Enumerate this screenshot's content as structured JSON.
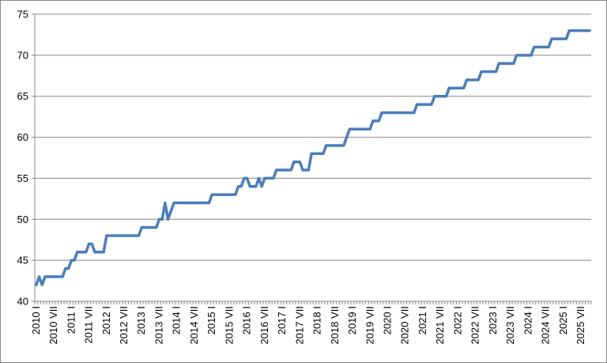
{
  "chart_data": {
    "type": "line",
    "categories": [
      "2010 I",
      null,
      null,
      null,
      null,
      null,
      "2010 VII",
      null,
      null,
      null,
      null,
      null,
      "2011 I",
      null,
      null,
      null,
      null,
      null,
      "2011 VII",
      null,
      null,
      null,
      null,
      null,
      "2012 I",
      null,
      null,
      null,
      null,
      null,
      "2012 VII",
      null,
      null,
      null,
      null,
      null,
      "2013 I",
      null,
      null,
      null,
      null,
      null,
      "2013 VII",
      null,
      null,
      null,
      null,
      null,
      "2014 I",
      null,
      null,
      null,
      null,
      null,
      "2014 VII",
      null,
      null,
      null,
      null,
      null,
      "2015 I",
      null,
      null,
      null,
      null,
      null,
      "2015 VII",
      null,
      null,
      null,
      null,
      null,
      "2016 I",
      null,
      null,
      null,
      null,
      null,
      "2016 VII",
      null,
      null,
      null,
      null,
      null,
      "2017 I",
      null,
      null,
      null,
      null,
      null,
      "2017 VII",
      null,
      null,
      null,
      null,
      null,
      "2018 I",
      null,
      null,
      null,
      null,
      null,
      "2018 VII",
      null,
      null,
      null,
      null,
      null,
      "2019 I",
      null,
      null,
      null,
      null,
      null,
      "2019 VII",
      null,
      null,
      null,
      null,
      null,
      "2020 I",
      null,
      null,
      null,
      null,
      null,
      "2020 VII",
      null,
      null,
      null,
      null,
      null,
      "2021 I",
      null,
      null,
      null,
      null,
      null,
      "2021 VII",
      null,
      null,
      null,
      null,
      null,
      "2022 I",
      null,
      null,
      null,
      null,
      null,
      "2022 VII",
      null,
      null,
      null,
      null,
      null,
      "2023 I",
      null,
      null,
      null,
      null,
      null,
      "2023 VII",
      null,
      null,
      null,
      null,
      null,
      "2024 I",
      null,
      null,
      null,
      null,
      null,
      "2024 VII",
      null,
      null,
      null,
      null,
      null,
      "2025 I",
      null,
      null,
      null,
      null,
      null,
      "2025 VII",
      null,
      null,
      null
    ],
    "values": [
      42,
      43,
      42,
      43,
      43,
      43,
      43,
      43,
      43,
      43,
      44,
      44,
      45,
      45,
      46,
      46,
      46,
      46,
      47,
      47,
      46,
      46,
      46,
      46,
      48,
      48,
      48,
      48,
      48,
      48,
      48,
      48,
      48,
      48,
      48,
      48,
      49,
      49,
      49,
      49,
      49,
      49,
      50,
      50,
      52,
      50,
      51,
      52,
      52,
      52,
      52,
      52,
      52,
      52,
      52,
      52,
      52,
      52,
      52,
      52,
      53,
      53,
      53,
      53,
      53,
      53,
      53,
      53,
      53,
      54,
      54,
      55,
      55,
      54,
      54,
      54,
      55,
      54,
      55,
      55,
      55,
      55,
      56,
      56,
      56,
      56,
      56,
      56,
      57,
      57,
      57,
      56,
      56,
      56,
      58,
      58,
      58,
      58,
      58,
      59,
      59,
      59,
      59,
      59,
      59,
      59,
      60,
      61,
      61,
      61,
      61,
      61,
      61,
      61,
      61,
      62,
      62,
      62,
      63,
      63,
      63,
      63,
      63,
      63,
      63,
      63,
      63,
      63,
      63,
      63,
      64,
      64,
      64,
      64,
      64,
      64,
      65,
      65,
      65,
      65,
      65,
      66,
      66,
      66,
      66,
      66,
      66,
      67,
      67,
      67,
      67,
      67,
      68,
      68,
      68,
      68,
      68,
      68,
      69,
      69,
      69,
      69,
      69,
      69,
      70,
      70,
      70,
      70,
      70,
      70,
      71,
      71,
      71,
      71,
      71,
      71,
      72,
      72,
      72,
      72,
      72,
      72,
      73,
      73,
      73,
      73,
      73,
      73,
      73,
      73
    ],
    "color": "#4a7ebb",
    "ylim": [
      40,
      75
    ],
    "yticks": [
      40,
      45,
      50,
      55,
      60,
      65,
      70,
      75
    ],
    "grid": true
  }
}
